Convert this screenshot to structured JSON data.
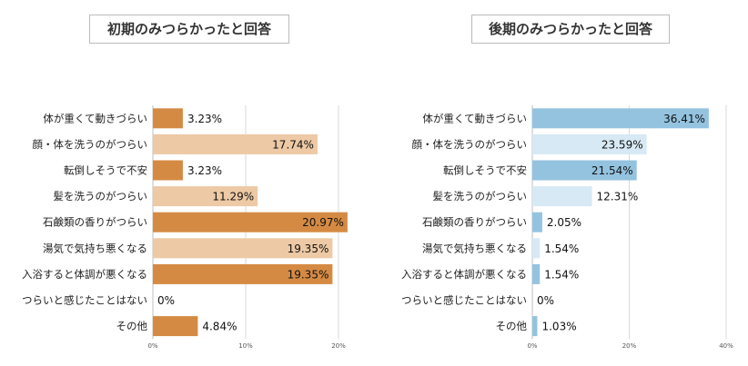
{
  "chart_data": [
    {
      "type": "bar",
      "orientation": "horizontal",
      "title": "初期のみつらかったと回答",
      "categories": [
        "体が重くて動きづらい",
        "顔・体を洗うのがつらい",
        "転倒しそうで不安",
        "髪を洗うのがつらい",
        "石鹸類の香りがつらい",
        "湯気で気持ち悪くなる",
        "入浴すると体調が悪くなる",
        "つらいと感じたことはない",
        "その他"
      ],
      "values": [
        3.23,
        17.74,
        3.23,
        11.29,
        20.97,
        19.35,
        19.35,
        0,
        4.84
      ],
      "value_labels": [
        "3.23%",
        "17.74%",
        "3.23%",
        "11.29%",
        "20.97%",
        "19.35%",
        "19.35%",
        "0%",
        "4.84%"
      ],
      "xlim": [
        0,
        20
      ],
      "xticks": [
        "0%",
        "10%",
        "20%"
      ],
      "colors": [
        "#d58a43",
        "#edc9a5",
        "#d58a43",
        "#edc9a5",
        "#d58a43",
        "#edc9a5",
        "#d58a43",
        "#edc9a5",
        "#d58a43"
      ],
      "grid": true
    },
    {
      "type": "bar",
      "orientation": "horizontal",
      "title": "後期のみつらかったと回答",
      "categories": [
        "体が重くて動きづらい",
        "顔・体を洗うのがつらい",
        "転倒しそうで不安",
        "髪を洗うのがつらい",
        "石鹸類の香りがつらい",
        "湯気で気持ち悪くなる",
        "入浴すると体調が悪くなる",
        "つらいと感じたことはない",
        "その他"
      ],
      "values": [
        36.41,
        23.59,
        21.54,
        12.31,
        2.05,
        1.54,
        1.54,
        0,
        1.03
      ],
      "value_labels": [
        "36.41%",
        "23.59%",
        "21.54%",
        "12.31%",
        "2.05%",
        "1.54%",
        "1.54%",
        "0%",
        "1.03%"
      ],
      "xlim": [
        0,
        40
      ],
      "xticks": [
        "0%",
        "20%",
        "40%"
      ],
      "colors": [
        "#94c3e0",
        "#d6e9f4",
        "#94c3e0",
        "#d6e9f4",
        "#94c3e0",
        "#d6e9f4",
        "#94c3e0",
        "#d6e9f4",
        "#94c3e0"
      ],
      "grid": true
    }
  ]
}
